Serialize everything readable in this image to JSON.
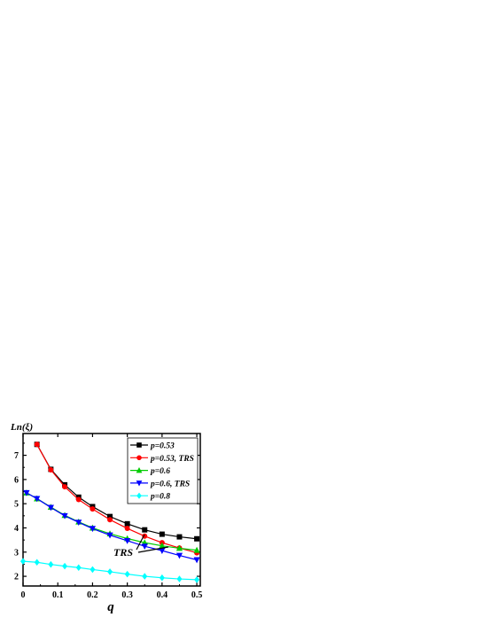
{
  "chart_data": {
    "type": "line",
    "title": "",
    "xlabel": "q",
    "ylabel": "Ln(ξ)",
    "xlim": [
      0,
      0.51
    ],
    "ylim": [
      1.6,
      7.9
    ],
    "xticks": [
      0,
      0.1,
      0.2,
      0.3,
      0.4,
      0.5
    ],
    "xtick_labels": [
      "0",
      "0.1",
      "0.2",
      "0.3",
      "0.4",
      "0.5"
    ],
    "yticks": [
      2,
      3,
      4,
      5,
      6,
      7
    ],
    "ytick_labels": [
      "2",
      "3",
      "4",
      "5",
      "6",
      "7"
    ],
    "legend_position": "top-right",
    "grid": false,
    "annotation": "TRS",
    "series": [
      {
        "name": "p=0.53",
        "color": "#000000",
        "marker": "square",
        "x": [
          0.04,
          0.08,
          0.12,
          0.16,
          0.2,
          0.25,
          0.3,
          0.35,
          0.4,
          0.45,
          0.5
        ],
        "y": [
          7.45,
          6.42,
          5.78,
          5.27,
          4.88,
          4.47,
          4.17,
          3.92,
          3.74,
          3.63,
          3.55
        ]
      },
      {
        "name": "p=0.53, TRS",
        "color": "#ff0000",
        "marker": "circle",
        "x": [
          0.04,
          0.08,
          0.12,
          0.16,
          0.2,
          0.25,
          0.3,
          0.35,
          0.4,
          0.45,
          0.5
        ],
        "y": [
          7.45,
          6.4,
          5.7,
          5.17,
          4.78,
          4.34,
          3.98,
          3.66,
          3.39,
          3.17,
          2.97
        ]
      },
      {
        "name": "p=0.6",
        "color": "#00cc00",
        "marker": "triangle-up",
        "x": [
          0.01,
          0.04,
          0.08,
          0.12,
          0.16,
          0.2,
          0.25,
          0.3,
          0.35,
          0.4,
          0.45,
          0.5
        ],
        "y": [
          5.45,
          5.21,
          4.86,
          4.52,
          4.25,
          4.0,
          3.76,
          3.56,
          3.39,
          3.26,
          3.16,
          3.08
        ]
      },
      {
        "name": "p=0.6, TRS",
        "color": "#0000ff",
        "marker": "triangle-down",
        "x": [
          0.01,
          0.04,
          0.08,
          0.12,
          0.16,
          0.2,
          0.25,
          0.3,
          0.35,
          0.4,
          0.45,
          0.5
        ],
        "y": [
          5.45,
          5.21,
          4.84,
          4.5,
          4.23,
          3.97,
          3.7,
          3.47,
          3.24,
          3.06,
          2.86,
          2.68
        ]
      },
      {
        "name": "p=0.8",
        "color": "#00ffff",
        "marker": "diamond",
        "x": [
          0.0,
          0.04,
          0.08,
          0.12,
          0.16,
          0.2,
          0.25,
          0.3,
          0.35,
          0.4,
          0.45,
          0.5
        ],
        "y": [
          2.62,
          2.58,
          2.49,
          2.42,
          2.36,
          2.28,
          2.19,
          2.09,
          2.0,
          1.94,
          1.89,
          1.86
        ]
      }
    ]
  }
}
